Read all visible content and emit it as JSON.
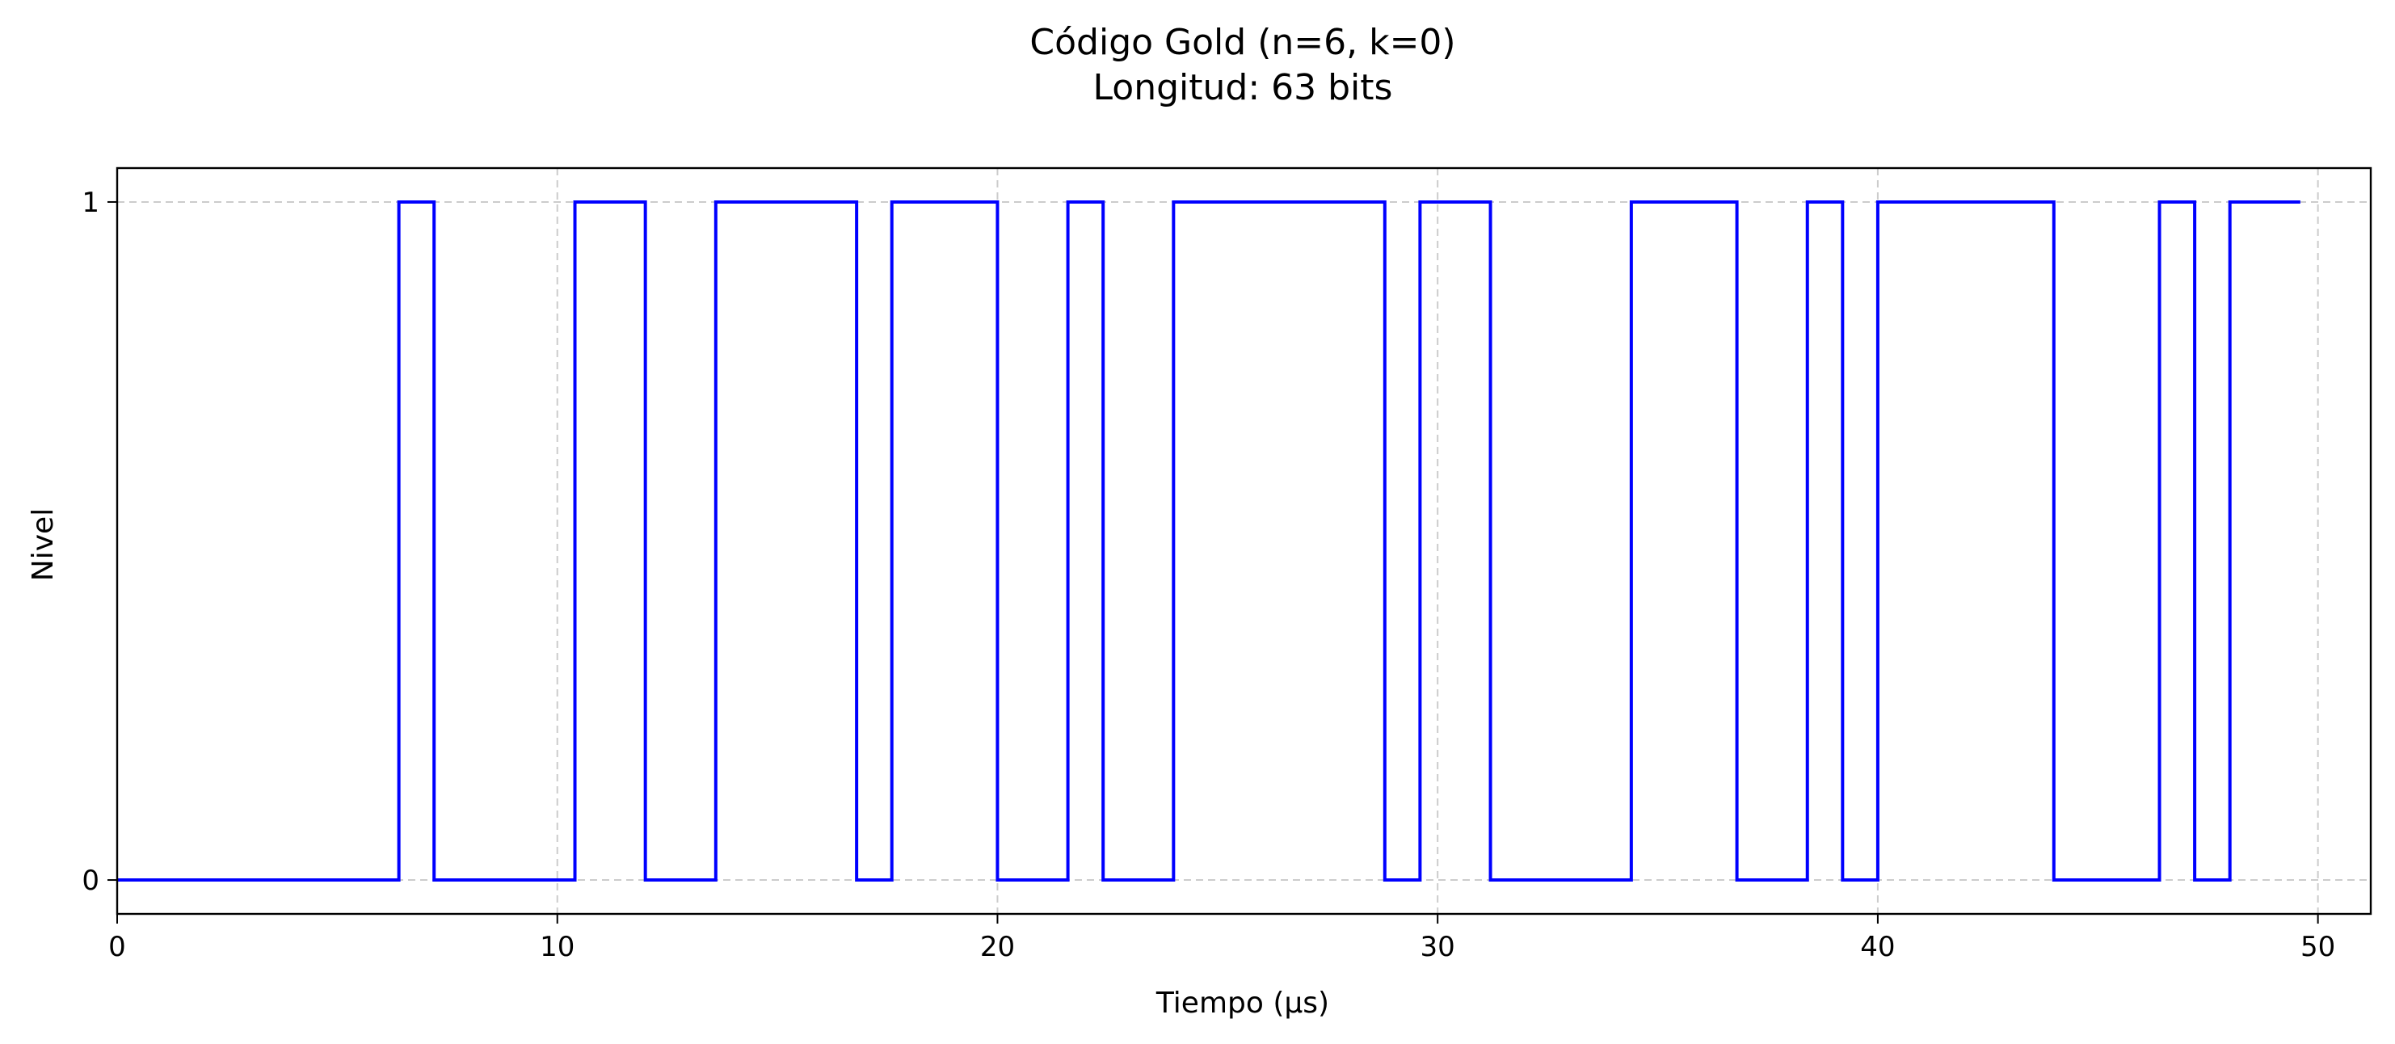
{
  "chart_data": {
    "type": "line",
    "step": "post",
    "title_line1": "Código Gold (n=6, k=0)",
    "title_line2": "Longitud: 63 bits",
    "xlabel": "Tiempo (μs)",
    "ylabel": "Nivel",
    "xlim": [
      0,
      51.2
    ],
    "ylim": [
      -0.05,
      1.05
    ],
    "xticks": [
      0,
      10,
      20,
      30,
      40,
      50
    ],
    "yticks": [
      0,
      1
    ],
    "grid": true,
    "color": "#0000ff",
    "bit_duration_us": 0.8,
    "bits": [
      0,
      0,
      0,
      0,
      0,
      0,
      0,
      0,
      1,
      0,
      0,
      0,
      0,
      1,
      1,
      0,
      0,
      1,
      1,
      1,
      1,
      0,
      1,
      1,
      1,
      0,
      0,
      1,
      0,
      0,
      1,
      1,
      1,
      1,
      1,
      1,
      0,
      1,
      1,
      0,
      0,
      0,
      0,
      1,
      1,
      1,
      0,
      0,
      1,
      0,
      1,
      1,
      1,
      1,
      1,
      0,
      0,
      0,
      1,
      0,
      1,
      1,
      1
    ]
  }
}
